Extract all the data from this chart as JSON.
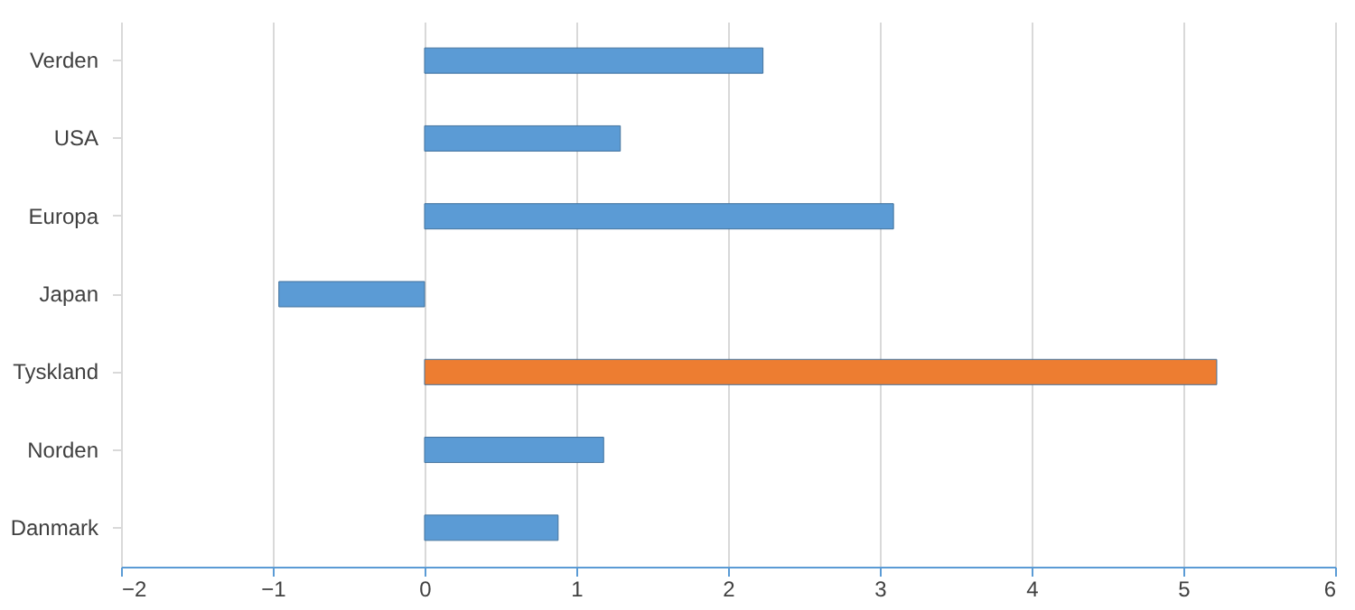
{
  "chart_data": {
    "type": "bar",
    "orientation": "horizontal",
    "categories": [
      "Verden",
      "USA",
      "Europa",
      "Japan",
      "Tyskland",
      "Norden",
      "Danmark"
    ],
    "values": [
      2.23,
      1.29,
      3.09,
      -0.96,
      5.22,
      1.18,
      0.88
    ],
    "colors": [
      "#5b9bd5",
      "#5b9bd5",
      "#5b9bd5",
      "#5b9bd5",
      "#ed7d31",
      "#5b9bd5",
      "#5b9bd5"
    ],
    "xlim": [
      -2,
      6
    ],
    "xticks": [
      -2,
      -1,
      0,
      1,
      2,
      3,
      4,
      5,
      6
    ],
    "grid": "x"
  }
}
